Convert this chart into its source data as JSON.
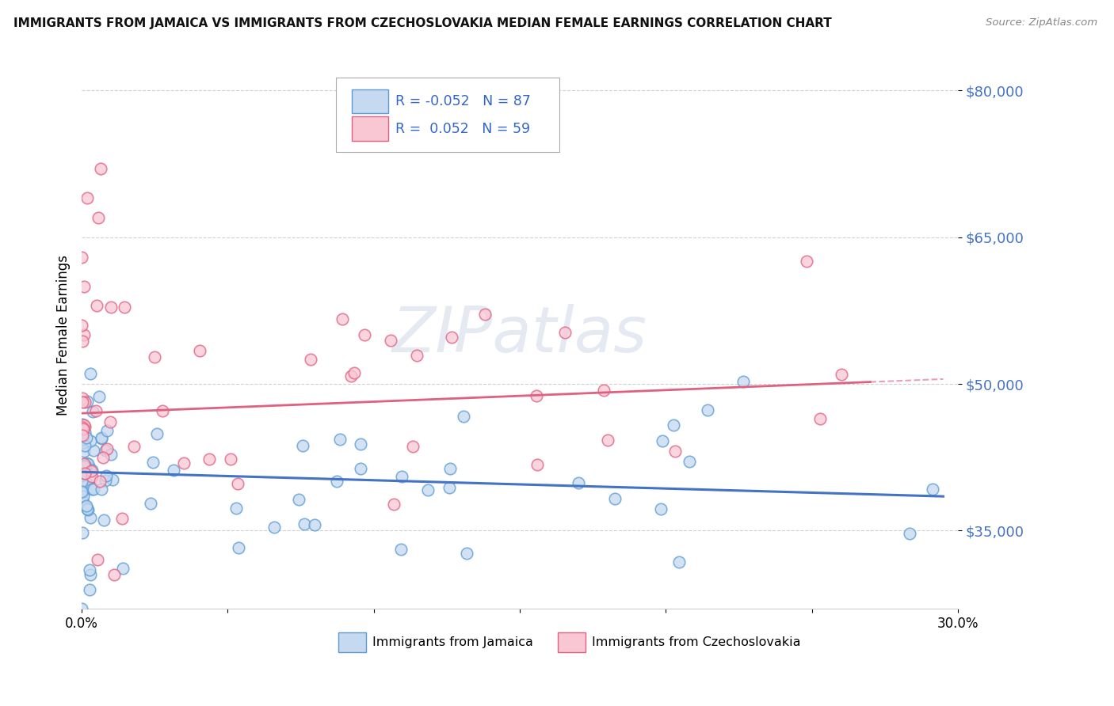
{
  "title": "IMMIGRANTS FROM JAMAICA VS IMMIGRANTS FROM CZECHOSLOVAKIA MEDIAN FEMALE EARNINGS CORRELATION CHART",
  "source": "Source: ZipAtlas.com",
  "ylabel": "Median Female Earnings",
  "xlim": [
    0.0,
    0.3
  ],
  "ylim": [
    27000,
    83000
  ],
  "yticks": [
    35000,
    50000,
    65000,
    80000
  ],
  "ytick_labels": [
    "$35,000",
    "$50,000",
    "$65,000",
    "$80,000"
  ],
  "legend_r_jamaica": "-0.052",
  "legend_n_jamaica": "87",
  "legend_r_czech": "0.052",
  "legend_n_czech": "59",
  "color_jamaica_fill": "#c5d9f0",
  "color_jamaica_edge": "#5b9bd5",
  "color_czech_fill": "#f9c6d4",
  "color_czech_edge": "#e06080",
  "color_line_jamaica": "#4472c4",
  "color_line_czech": "#e06080",
  "watermark": "ZIPatlas",
  "background_color": "#ffffff",
  "title_fontsize": 11,
  "ytick_color": "#4472c4"
}
